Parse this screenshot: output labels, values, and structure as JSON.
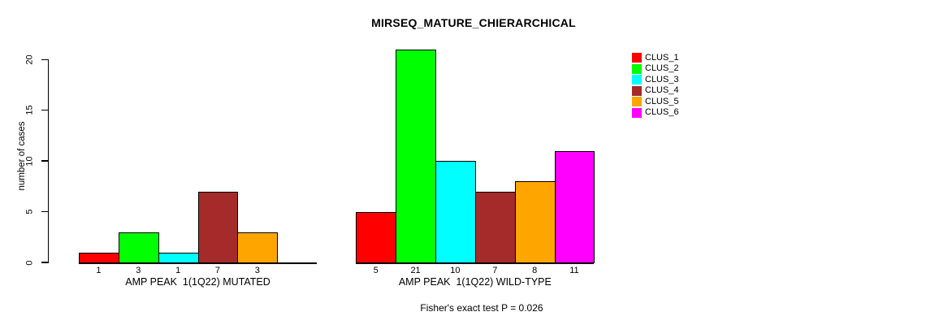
{
  "title": "MIRSEQ_MATURE_CHIERARCHICAL",
  "footer": "Fisher's exact test P = 0.026",
  "y_axis": {
    "label": "number of cases",
    "ticks": [
      0,
      5,
      10,
      15,
      20
    ]
  },
  "chart_data": {
    "type": "bar",
    "title": "MIRSEQ_MATURE_CHIERARCHICAL",
    "xlabel": "",
    "ylabel": "number of cases",
    "ylim": [
      0,
      21
    ],
    "yticks": [
      0,
      5,
      10,
      15,
      20
    ],
    "grid": false,
    "legend_position": "right-outside",
    "series": [
      {
        "name": "CLUS_1",
        "color": "#ff0000"
      },
      {
        "name": "CLUS_2",
        "color": "#00ff00"
      },
      {
        "name": "CLUS_3",
        "color": "#00ffff"
      },
      {
        "name": "CLUS_4",
        "color": "#a52a2a"
      },
      {
        "name": "CLUS_5",
        "color": "#ffa500"
      },
      {
        "name": "CLUS_6",
        "color": "#ff00ff"
      }
    ],
    "groups": [
      {
        "label": "AMP PEAK  1(1Q22) MUTATED",
        "values": [
          1,
          3,
          1,
          7,
          3,
          0
        ],
        "bar_labels": [
          "1",
          "3",
          "1",
          "7",
          "3",
          ""
        ]
      },
      {
        "label": "AMP PEAK  1(1Q22) WILD-TYPE",
        "values": [
          5,
          21,
          10,
          7,
          8,
          11
        ],
        "bar_labels": [
          "5",
          "21",
          "10",
          "7",
          "8",
          "11"
        ]
      }
    ],
    "annotation": "Fisher's exact test P = 0.026"
  }
}
